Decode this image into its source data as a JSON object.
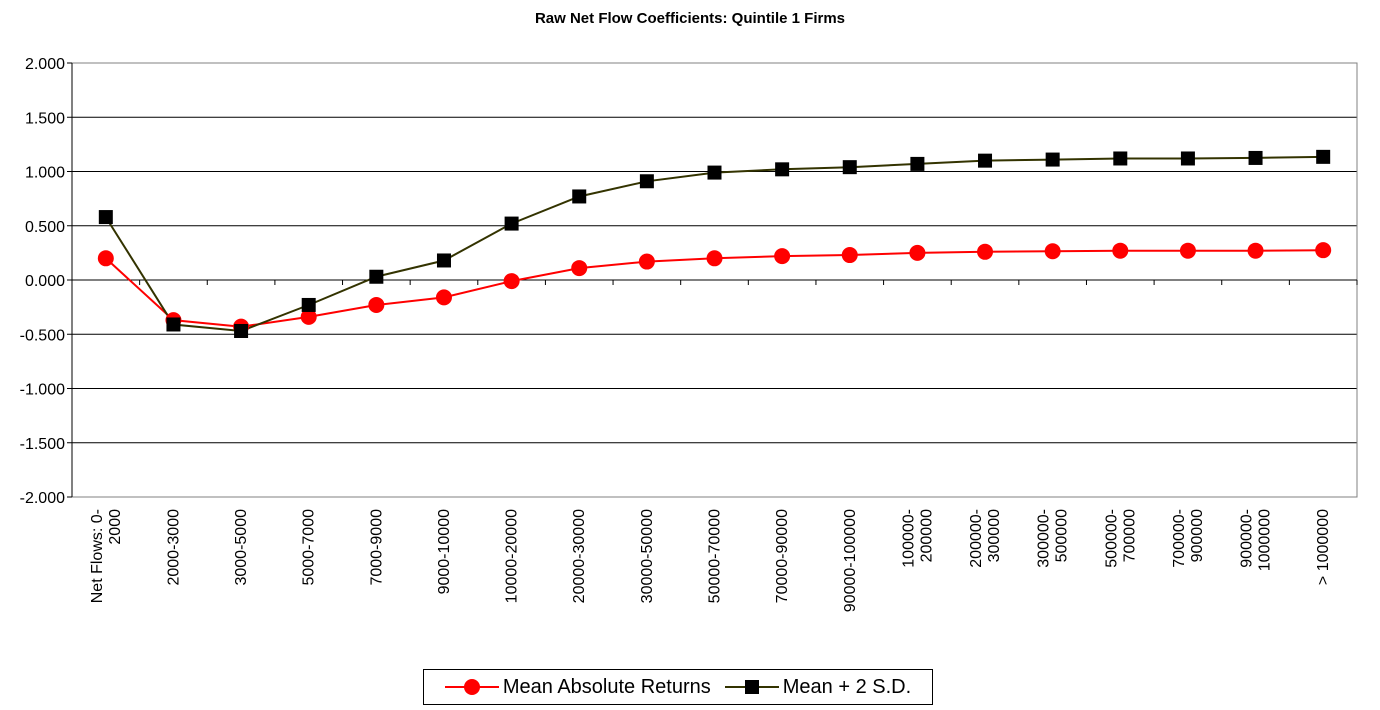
{
  "chart_data": {
    "type": "line",
    "title": "Raw Net Flow Coefficients: Quintile 1 Firms",
    "xlabel": "",
    "ylabel": "",
    "ylim": [
      -2.0,
      2.0
    ],
    "yticks": [
      "2.000",
      "1.500",
      "1.000",
      "0.500",
      "0.000",
      "-0.500",
      "-1.000",
      "-1.500",
      "-2.000"
    ],
    "categories": [
      [
        "Net Flows:  0-",
        "2000"
      ],
      [
        "2000-3000"
      ],
      [
        "3000-5000"
      ],
      [
        "5000-7000"
      ],
      [
        "7000-9000"
      ],
      [
        "9000-10000"
      ],
      [
        "10000-20000"
      ],
      [
        "20000-30000"
      ],
      [
        "30000-50000"
      ],
      [
        "50000-70000"
      ],
      [
        "70000-90000"
      ],
      [
        "90000-100000"
      ],
      [
        "100000-",
        "200000"
      ],
      [
        "200000-",
        "300000"
      ],
      [
        "300000-",
        "500000"
      ],
      [
        "500000-",
        "700000"
      ],
      [
        "700000-",
        "900000"
      ],
      [
        "900000-",
        "1000000"
      ],
      [
        "> 1000000"
      ]
    ],
    "series": [
      {
        "name": "Mean Absolute Returns",
        "color": "#ff0000",
        "marker": "circle",
        "values": [
          0.2,
          -0.37,
          -0.43,
          -0.34,
          -0.23,
          -0.16,
          -0.01,
          0.11,
          0.17,
          0.2,
          0.22,
          0.23,
          0.25,
          0.26,
          0.265,
          0.27,
          0.27,
          0.27,
          0.275
        ]
      },
      {
        "name": "Mean + 2 S.D.",
        "color": "#333300",
        "marker": "square",
        "values": [
          0.58,
          -0.41,
          -0.47,
          -0.23,
          0.03,
          0.18,
          0.52,
          0.77,
          0.91,
          0.99,
          1.02,
          1.04,
          1.07,
          1.1,
          1.11,
          1.12,
          1.12,
          1.125,
          1.135
        ]
      }
    ],
    "grid": true,
    "legend_position": "bottom"
  }
}
